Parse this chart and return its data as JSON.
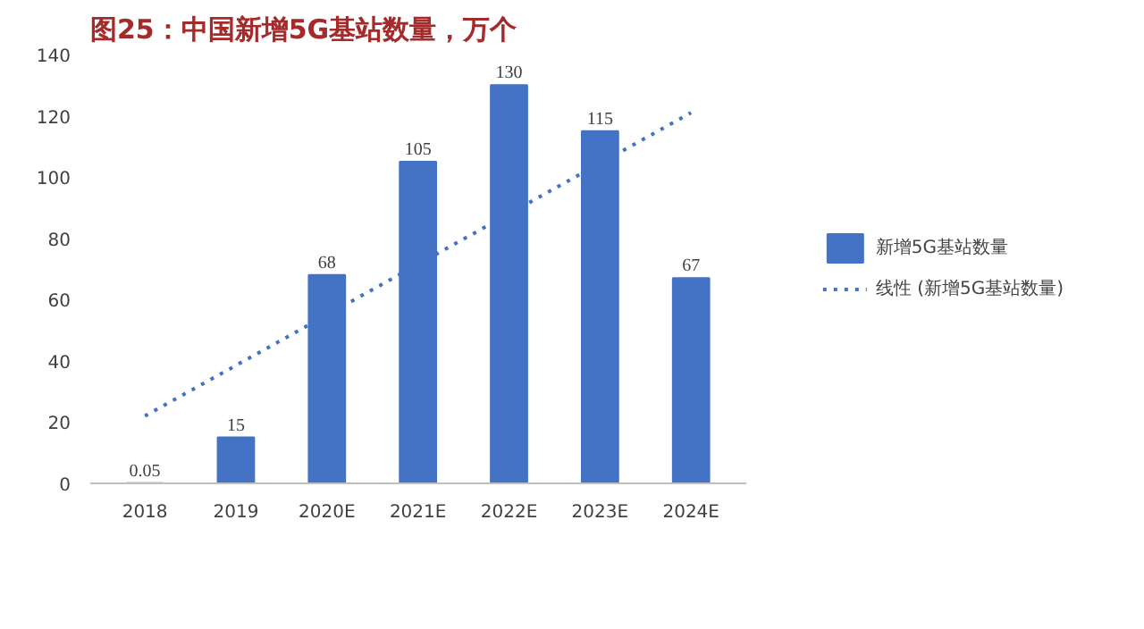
{
  "chart_data": {
    "type": "bar",
    "title": "图25：中国新增5G基站数量，万个",
    "categories": [
      "2018",
      "2019",
      "2020E",
      "2021E",
      "2022E",
      "2023E",
      "2024E"
    ],
    "series": [
      {
        "name": "新增5G基站数量",
        "color": "#4472c4",
        "values": [
          0.05,
          15,
          68,
          105,
          130,
          115,
          67
        ],
        "value_labels": [
          "0.05",
          "15",
          "68",
          "105",
          "130",
          "115",
          "67"
        ]
      },
      {
        "name": "线性 (新增5G基站数量)",
        "type": "line",
        "line_style": "dotted",
        "color": "#4472c4",
        "values": [
          22,
          38.5,
          55,
          71.5,
          88,
          104.5,
          121
        ]
      }
    ],
    "ylim": [
      0,
      140
    ],
    "yticks": [
      0,
      20,
      40,
      60,
      80,
      100,
      120,
      140
    ],
    "legend": "right"
  }
}
